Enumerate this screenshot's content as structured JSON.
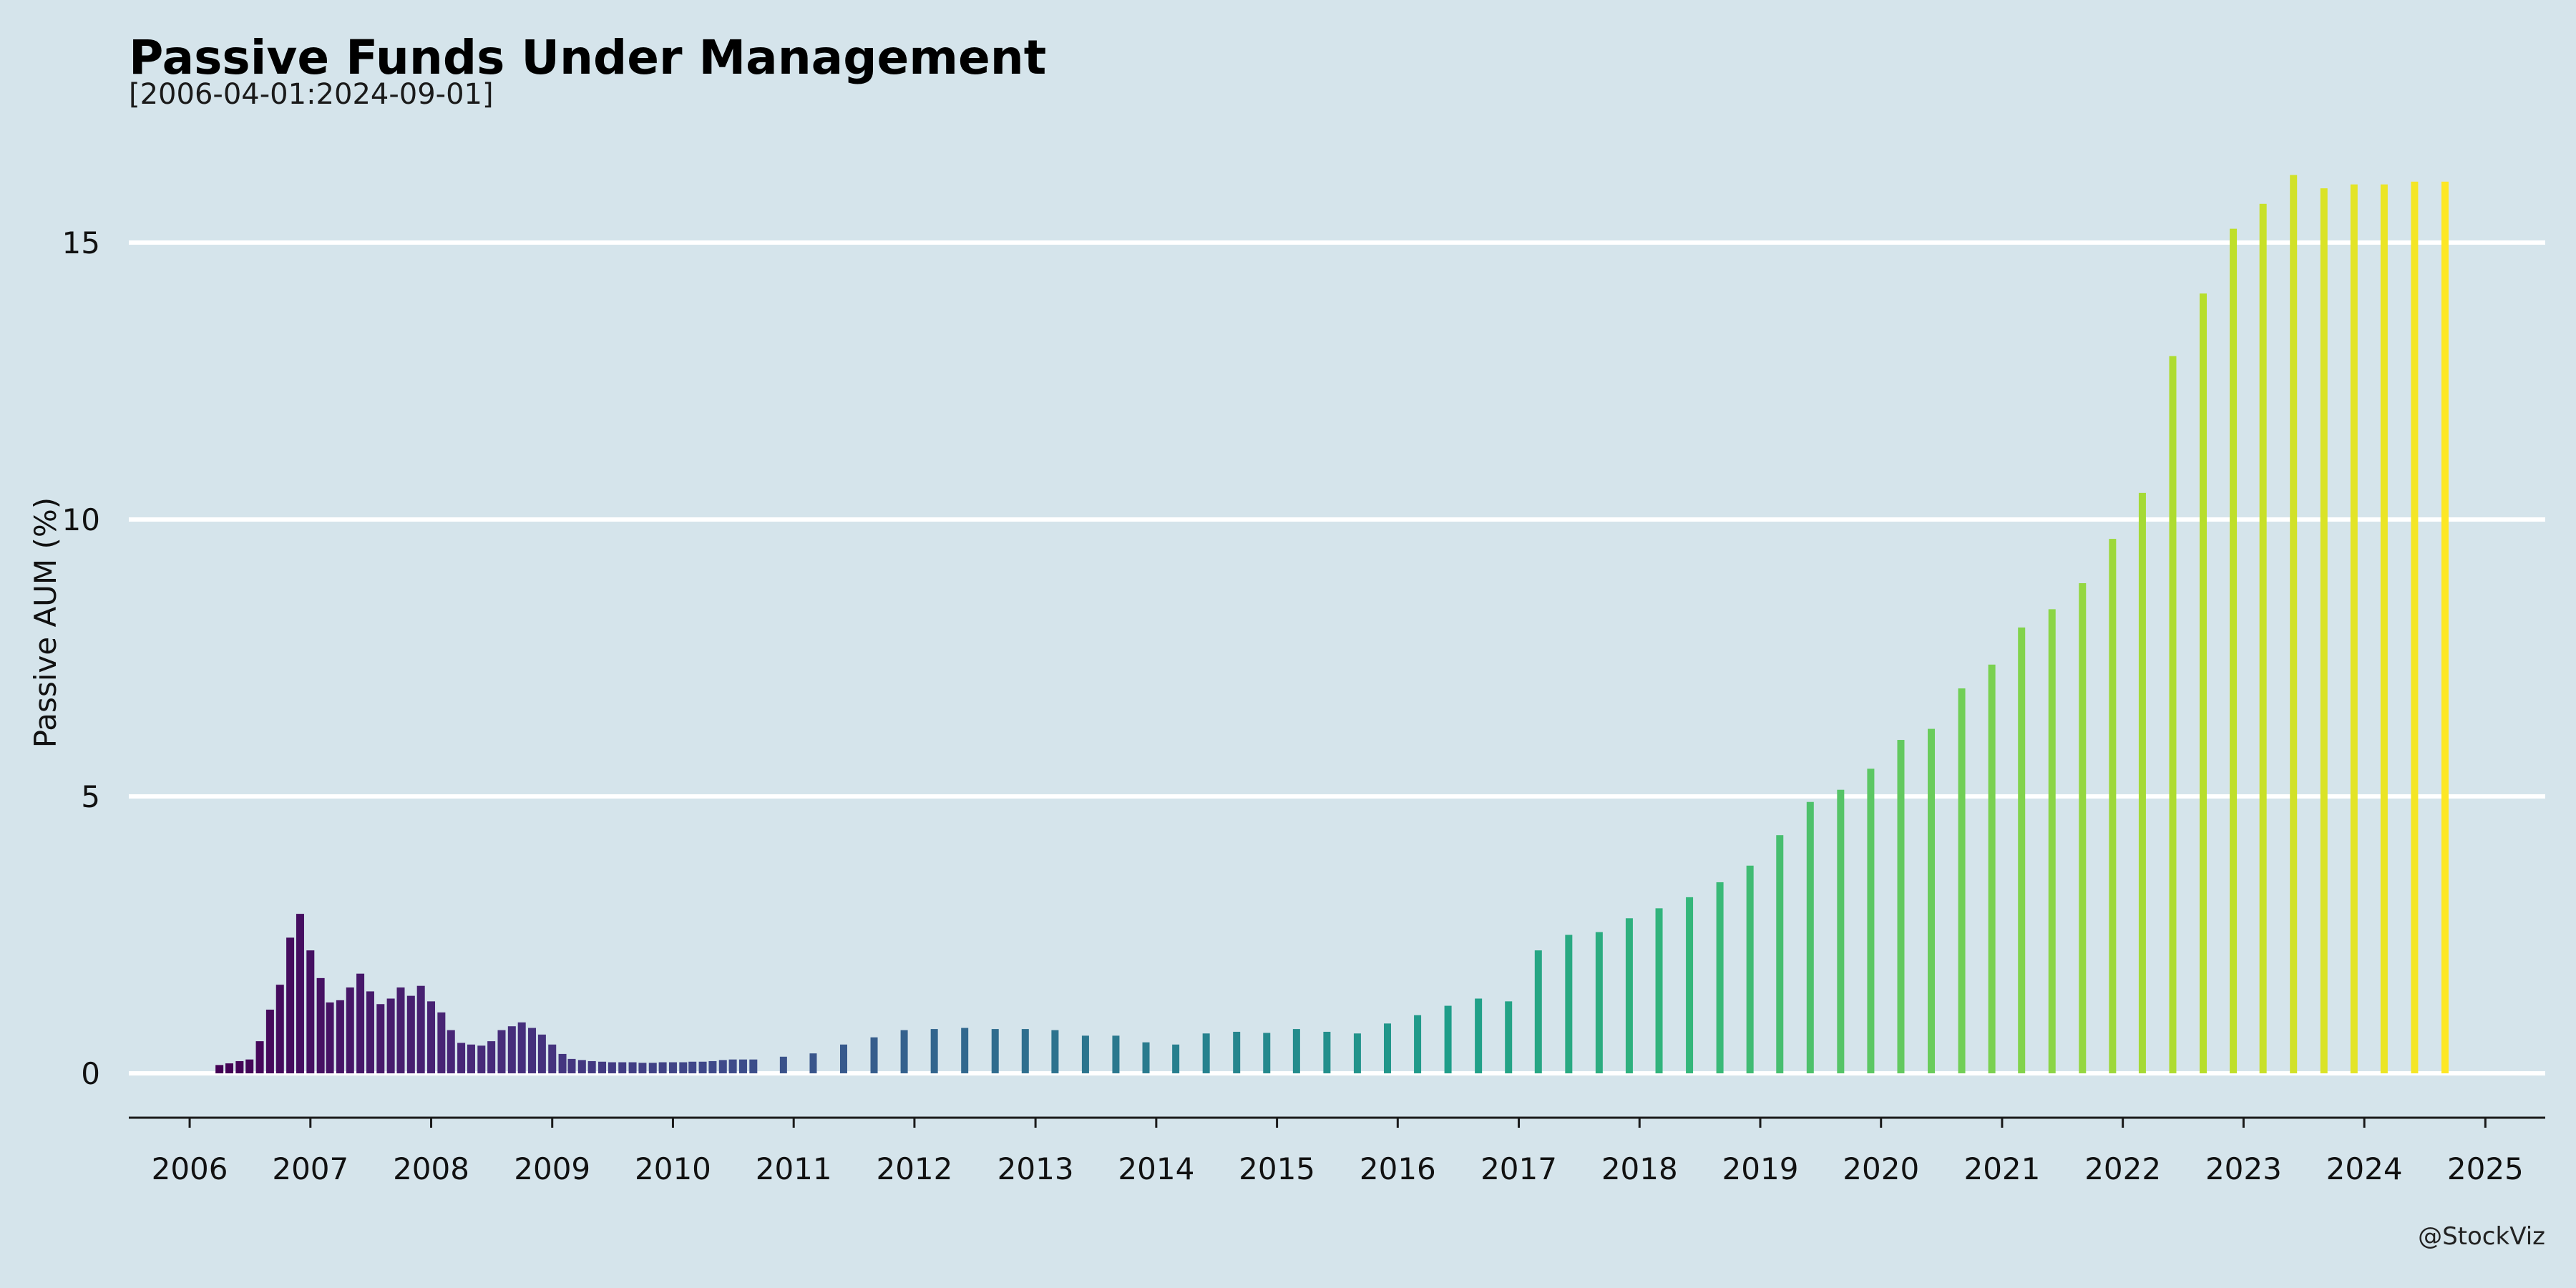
{
  "chart_data": {
    "type": "bar",
    "title": "Passive Funds Under Management",
    "subtitle": "[2006-04-01:2024-09-01]",
    "ylabel": "Passive AUM (%)",
    "xlabel": "",
    "caption": "@StockViz",
    "ylim": [
      -0.8,
      17
    ],
    "yticks": [
      0,
      5,
      10,
      15
    ],
    "xlim": [
      "2005-07-01",
      "2025-07-01"
    ],
    "xticks": [
      "2006",
      "2007",
      "2008",
      "2009",
      "2010",
      "2011",
      "2012",
      "2013",
      "2014",
      "2015",
      "2016",
      "2017",
      "2018",
      "2019",
      "2020",
      "2021",
      "2022",
      "2023",
      "2024",
      "2025"
    ],
    "grid": "horizontal",
    "legend": "none",
    "color_scale": "viridis",
    "colors": {
      "background": "#d5e4eb",
      "gridline": "#ffffff",
      "scale": [
        "#440154",
        "#482878",
        "#3e4989",
        "#31688e",
        "#26828e",
        "#1f9e89",
        "#35b779",
        "#6ece58",
        "#b5de2b",
        "#fde725"
      ]
    },
    "points": [
      [
        "2006-04-01",
        0.15
      ],
      [
        "2006-05-01",
        0.18
      ],
      [
        "2006-06-01",
        0.22
      ],
      [
        "2006-07-01",
        0.25
      ],
      [
        "2006-08-01",
        0.58
      ],
      [
        "2006-09-01",
        1.15
      ],
      [
        "2006-10-01",
        1.6
      ],
      [
        "2006-11-01",
        2.45
      ],
      [
        "2006-12-01",
        2.88
      ],
      [
        "2007-01-01",
        2.22
      ],
      [
        "2007-02-01",
        1.72
      ],
      [
        "2007-03-01",
        1.28
      ],
      [
        "2007-04-01",
        1.32
      ],
      [
        "2007-05-01",
        1.55
      ],
      [
        "2007-06-01",
        1.8
      ],
      [
        "2007-07-01",
        1.48
      ],
      [
        "2007-08-01",
        1.25
      ],
      [
        "2007-09-01",
        1.35
      ],
      [
        "2007-10-01",
        1.55
      ],
      [
        "2007-11-01",
        1.4
      ],
      [
        "2007-12-01",
        1.58
      ],
      [
        "2008-01-01",
        1.3
      ],
      [
        "2008-02-01",
        1.1
      ],
      [
        "2008-03-01",
        0.78
      ],
      [
        "2008-04-01",
        0.55
      ],
      [
        "2008-05-01",
        0.52
      ],
      [
        "2008-06-01",
        0.5
      ],
      [
        "2008-07-01",
        0.58
      ],
      [
        "2008-08-01",
        0.78
      ],
      [
        "2008-09-01",
        0.85
      ],
      [
        "2008-10-01",
        0.92
      ],
      [
        "2008-11-01",
        0.82
      ],
      [
        "2008-12-01",
        0.7
      ],
      [
        "2009-01-01",
        0.52
      ],
      [
        "2009-02-01",
        0.35
      ],
      [
        "2009-03-01",
        0.26
      ],
      [
        "2009-04-01",
        0.24
      ],
      [
        "2009-05-01",
        0.22
      ],
      [
        "2009-06-01",
        0.21
      ],
      [
        "2009-07-01",
        0.2
      ],
      [
        "2009-08-01",
        0.2
      ],
      [
        "2009-09-01",
        0.2
      ],
      [
        "2009-10-01",
        0.19
      ],
      [
        "2009-11-01",
        0.19
      ],
      [
        "2009-12-01",
        0.2
      ],
      [
        "2010-01-01",
        0.2
      ],
      [
        "2010-02-01",
        0.2
      ],
      [
        "2010-03-01",
        0.21
      ],
      [
        "2010-04-01",
        0.21
      ],
      [
        "2010-05-01",
        0.22
      ],
      [
        "2010-06-01",
        0.24
      ],
      [
        "2010-07-01",
        0.25
      ],
      [
        "2010-08-01",
        0.25
      ],
      [
        "2010-09-01",
        0.25
      ],
      [
        "2010-12-01",
        0.3
      ],
      [
        "2011-03-01",
        0.36
      ],
      [
        "2011-06-01",
        0.52
      ],
      [
        "2011-09-01",
        0.65
      ],
      [
        "2011-12-01",
        0.78
      ],
      [
        "2012-03-01",
        0.8
      ],
      [
        "2012-06-01",
        0.82
      ],
      [
        "2012-09-01",
        0.8
      ],
      [
        "2012-12-01",
        0.8
      ],
      [
        "2013-03-01",
        0.78
      ],
      [
        "2013-06-01",
        0.68
      ],
      [
        "2013-09-01",
        0.68
      ],
      [
        "2013-12-01",
        0.56
      ],
      [
        "2014-03-01",
        0.52
      ],
      [
        "2014-06-01",
        0.72
      ],
      [
        "2014-09-01",
        0.75
      ],
      [
        "2014-12-01",
        0.73
      ],
      [
        "2015-03-01",
        0.8
      ],
      [
        "2015-06-01",
        0.75
      ],
      [
        "2015-09-01",
        0.72
      ],
      [
        "2015-12-01",
        0.9
      ],
      [
        "2016-03-01",
        1.05
      ],
      [
        "2016-06-01",
        1.22
      ],
      [
        "2016-09-01",
        1.35
      ],
      [
        "2016-12-01",
        1.3
      ],
      [
        "2017-03-01",
        2.22
      ],
      [
        "2017-06-01",
        2.5
      ],
      [
        "2017-09-01",
        2.55
      ],
      [
        "2017-12-01",
        2.8
      ],
      [
        "2018-03-01",
        2.98
      ],
      [
        "2018-06-01",
        3.18
      ],
      [
        "2018-09-01",
        3.45
      ],
      [
        "2018-12-01",
        3.75
      ],
      [
        "2019-03-01",
        4.3
      ],
      [
        "2019-06-01",
        4.9
      ],
      [
        "2019-09-01",
        5.12
      ],
      [
        "2019-12-01",
        5.5
      ],
      [
        "2020-03-01",
        6.02
      ],
      [
        "2020-06-01",
        6.22
      ],
      [
        "2020-09-01",
        6.95
      ],
      [
        "2020-12-01",
        7.38
      ],
      [
        "2021-03-01",
        8.05
      ],
      [
        "2021-06-01",
        8.38
      ],
      [
        "2021-09-01",
        8.85
      ],
      [
        "2021-12-01",
        9.65
      ],
      [
        "2022-03-01",
        10.48
      ],
      [
        "2022-06-01",
        12.95
      ],
      [
        "2022-09-01",
        14.08
      ],
      [
        "2022-12-01",
        15.25
      ],
      [
        "2023-03-01",
        15.7
      ],
      [
        "2023-06-01",
        16.22
      ],
      [
        "2023-09-01",
        15.98
      ],
      [
        "2023-12-01",
        16.05
      ],
      [
        "2024-03-01",
        16.05
      ],
      [
        "2024-06-01",
        16.1
      ],
      [
        "2024-09-01",
        16.1
      ]
    ]
  }
}
